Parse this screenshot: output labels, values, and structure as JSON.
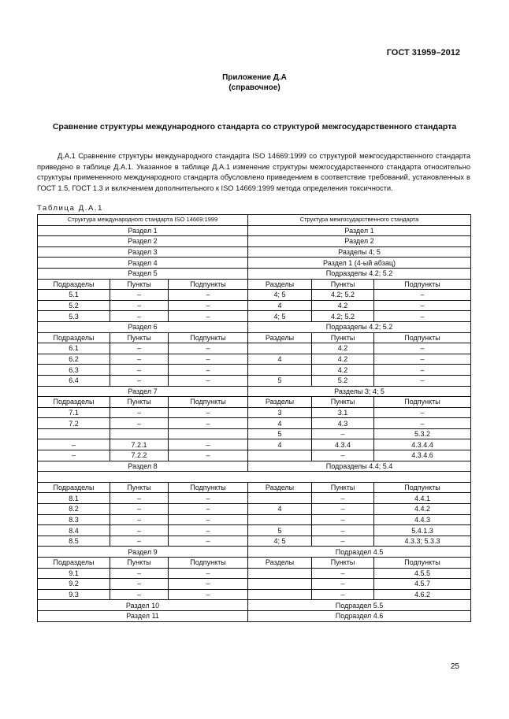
{
  "header": {
    "doc_id": "ГОСТ 31959–2012"
  },
  "appendix": {
    "title": "Приложение Д.А",
    "subtitle": "(справочное)"
  },
  "section_title": "Сравнение структуры международного стандарта со структурой межгосударственного стандарта",
  "paragraph": "Д.А.1 Сравнение структуры международного стандарта ISO 14669:1999 со структурой межгосударственного стандарта приведено в таблице Д.А.1. Указанное в таблице Д.А.1 изменение структуры межгосударственного стандарта относительно структуры примененного международного стандарта обусловлено приведением в соответствие требований, установленных в ГОСТ 1.5, ГОСТ 1.3 и включением дополнительного к ISO 14669:1999 метода определения токсичности.",
  "table": {
    "caption": "Таблица Д.А.1",
    "header": [
      "Структура международного стандарта ISO 14669:1999",
      "Структура межгосударственного стандарта"
    ],
    "rows": [
      {
        "span": [
          "Раздел 1",
          "Раздел 1"
        ]
      },
      {
        "span": [
          "Раздел 2",
          "Раздел 2"
        ]
      },
      {
        "span": [
          "Раздел 3",
          "Разделы 4; 5"
        ]
      },
      {
        "span": [
          "Раздел 4",
          "Раздел 1 (4-ый абзац)"
        ]
      },
      {
        "span": [
          "Раздел 5",
          "Подразделы 4.2; 5.2"
        ]
      },
      {
        "cells": [
          "Подразделы",
          "Пункты",
          "Подпункты",
          "Разделы",
          "Пункты",
          "Подпункты"
        ]
      },
      {
        "cells": [
          "5.1",
          "–",
          "–",
          "4; 5",
          "4.2; 5.2",
          "–"
        ]
      },
      {
        "cells": [
          "5.2",
          "–",
          "–",
          "4",
          "4.2",
          "–"
        ]
      },
      {
        "cells": [
          "5.3",
          "–",
          "–",
          "4; 5",
          "4.2; 5.2",
          "–"
        ]
      },
      {
        "span": [
          "Раздел 6",
          "Подразделы 4.2; 5.2"
        ]
      },
      {
        "cells": [
          "Подразделы",
          "Пункты",
          "Подпункты",
          "Разделы",
          "Пункты",
          "Подпункты"
        ]
      },
      {
        "cells": [
          "6.1",
          "–",
          "–",
          "",
          "4.2",
          "–"
        ]
      },
      {
        "cells": [
          "6.2",
          "–",
          "–",
          "4",
          "4.2",
          "–"
        ]
      },
      {
        "cells": [
          "6.3",
          "–",
          "–",
          "",
          "4.2",
          "–"
        ]
      },
      {
        "cells": [
          "6.4",
          "–",
          "–",
          "5",
          "5.2",
          "–"
        ]
      },
      {
        "span": [
          "Раздел 7",
          "Разделы 3; 4; 5"
        ]
      },
      {
        "cells": [
          "Подразделы",
          "Пункты",
          "Подпункты",
          "Разделы",
          "Пункты",
          "Подпункты"
        ]
      },
      {
        "cells": [
          "7.1",
          "–",
          "–",
          "3",
          "3.1",
          "–"
        ]
      },
      {
        "cells": [
          "7.2",
          "–",
          "–",
          "4",
          "4.3",
          "–"
        ]
      },
      {
        "cells": [
          "",
          "",
          "",
          "5",
          "–",
          "5.3.2"
        ]
      },
      {
        "cells": [
          "–",
          "7.2.1",
          "–",
          "4",
          "4.3.4",
          "4.3.4.4"
        ]
      },
      {
        "cells": [
          "–",
          "7.2.2",
          "–",
          "",
          "–",
          "4.3.4.6"
        ]
      },
      {
        "span": [
          "Раздел 8",
          "Подразделы 4.4; 5.4"
        ]
      },
      {
        "blank": true
      },
      {
        "cells": [
          "Подразделы",
          "Пункты",
          "Подпункты",
          "Разделы",
          "Пункты",
          "Подпункты"
        ]
      },
      {
        "cells": [
          "8.1",
          "–",
          "–",
          "",
          "–",
          "4.4.1"
        ]
      },
      {
        "cells": [
          "8.2",
          "–",
          "–",
          "4",
          "–",
          "4.4.2"
        ]
      },
      {
        "cells": [
          "8.3",
          "–",
          "–",
          "",
          "–",
          "4.4.3"
        ]
      },
      {
        "cells": [
          "8.4",
          "–",
          "–",
          "5",
          "–",
          "5.4.1.3"
        ]
      },
      {
        "cells": [
          "8.5",
          "–",
          "–",
          "4; 5",
          "–",
          "4.3.3; 5.3.3"
        ]
      },
      {
        "span": [
          "Раздел 9",
          "Подраздел 4.5"
        ]
      },
      {
        "cells": [
          "Подразделы",
          "Пункты",
          "Подпункты",
          "Разделы",
          "Пункты",
          "Подпункты"
        ]
      },
      {
        "cells": [
          "9.1",
          "–",
          "–",
          "",
          "–",
          "4.5.5"
        ]
      },
      {
        "cells": [
          "9.2",
          "–",
          "–",
          "",
          "–",
          "4.5.7"
        ]
      },
      {
        "cells": [
          "9.3",
          "–",
          "–",
          "",
          "–",
          "4.6.2"
        ]
      },
      {
        "span": [
          "Раздел 10",
          "Подраздел 5.5"
        ]
      },
      {
        "span": [
          "Раздел 11",
          "Подраздел 4.6"
        ]
      }
    ]
  },
  "page_number": "25"
}
